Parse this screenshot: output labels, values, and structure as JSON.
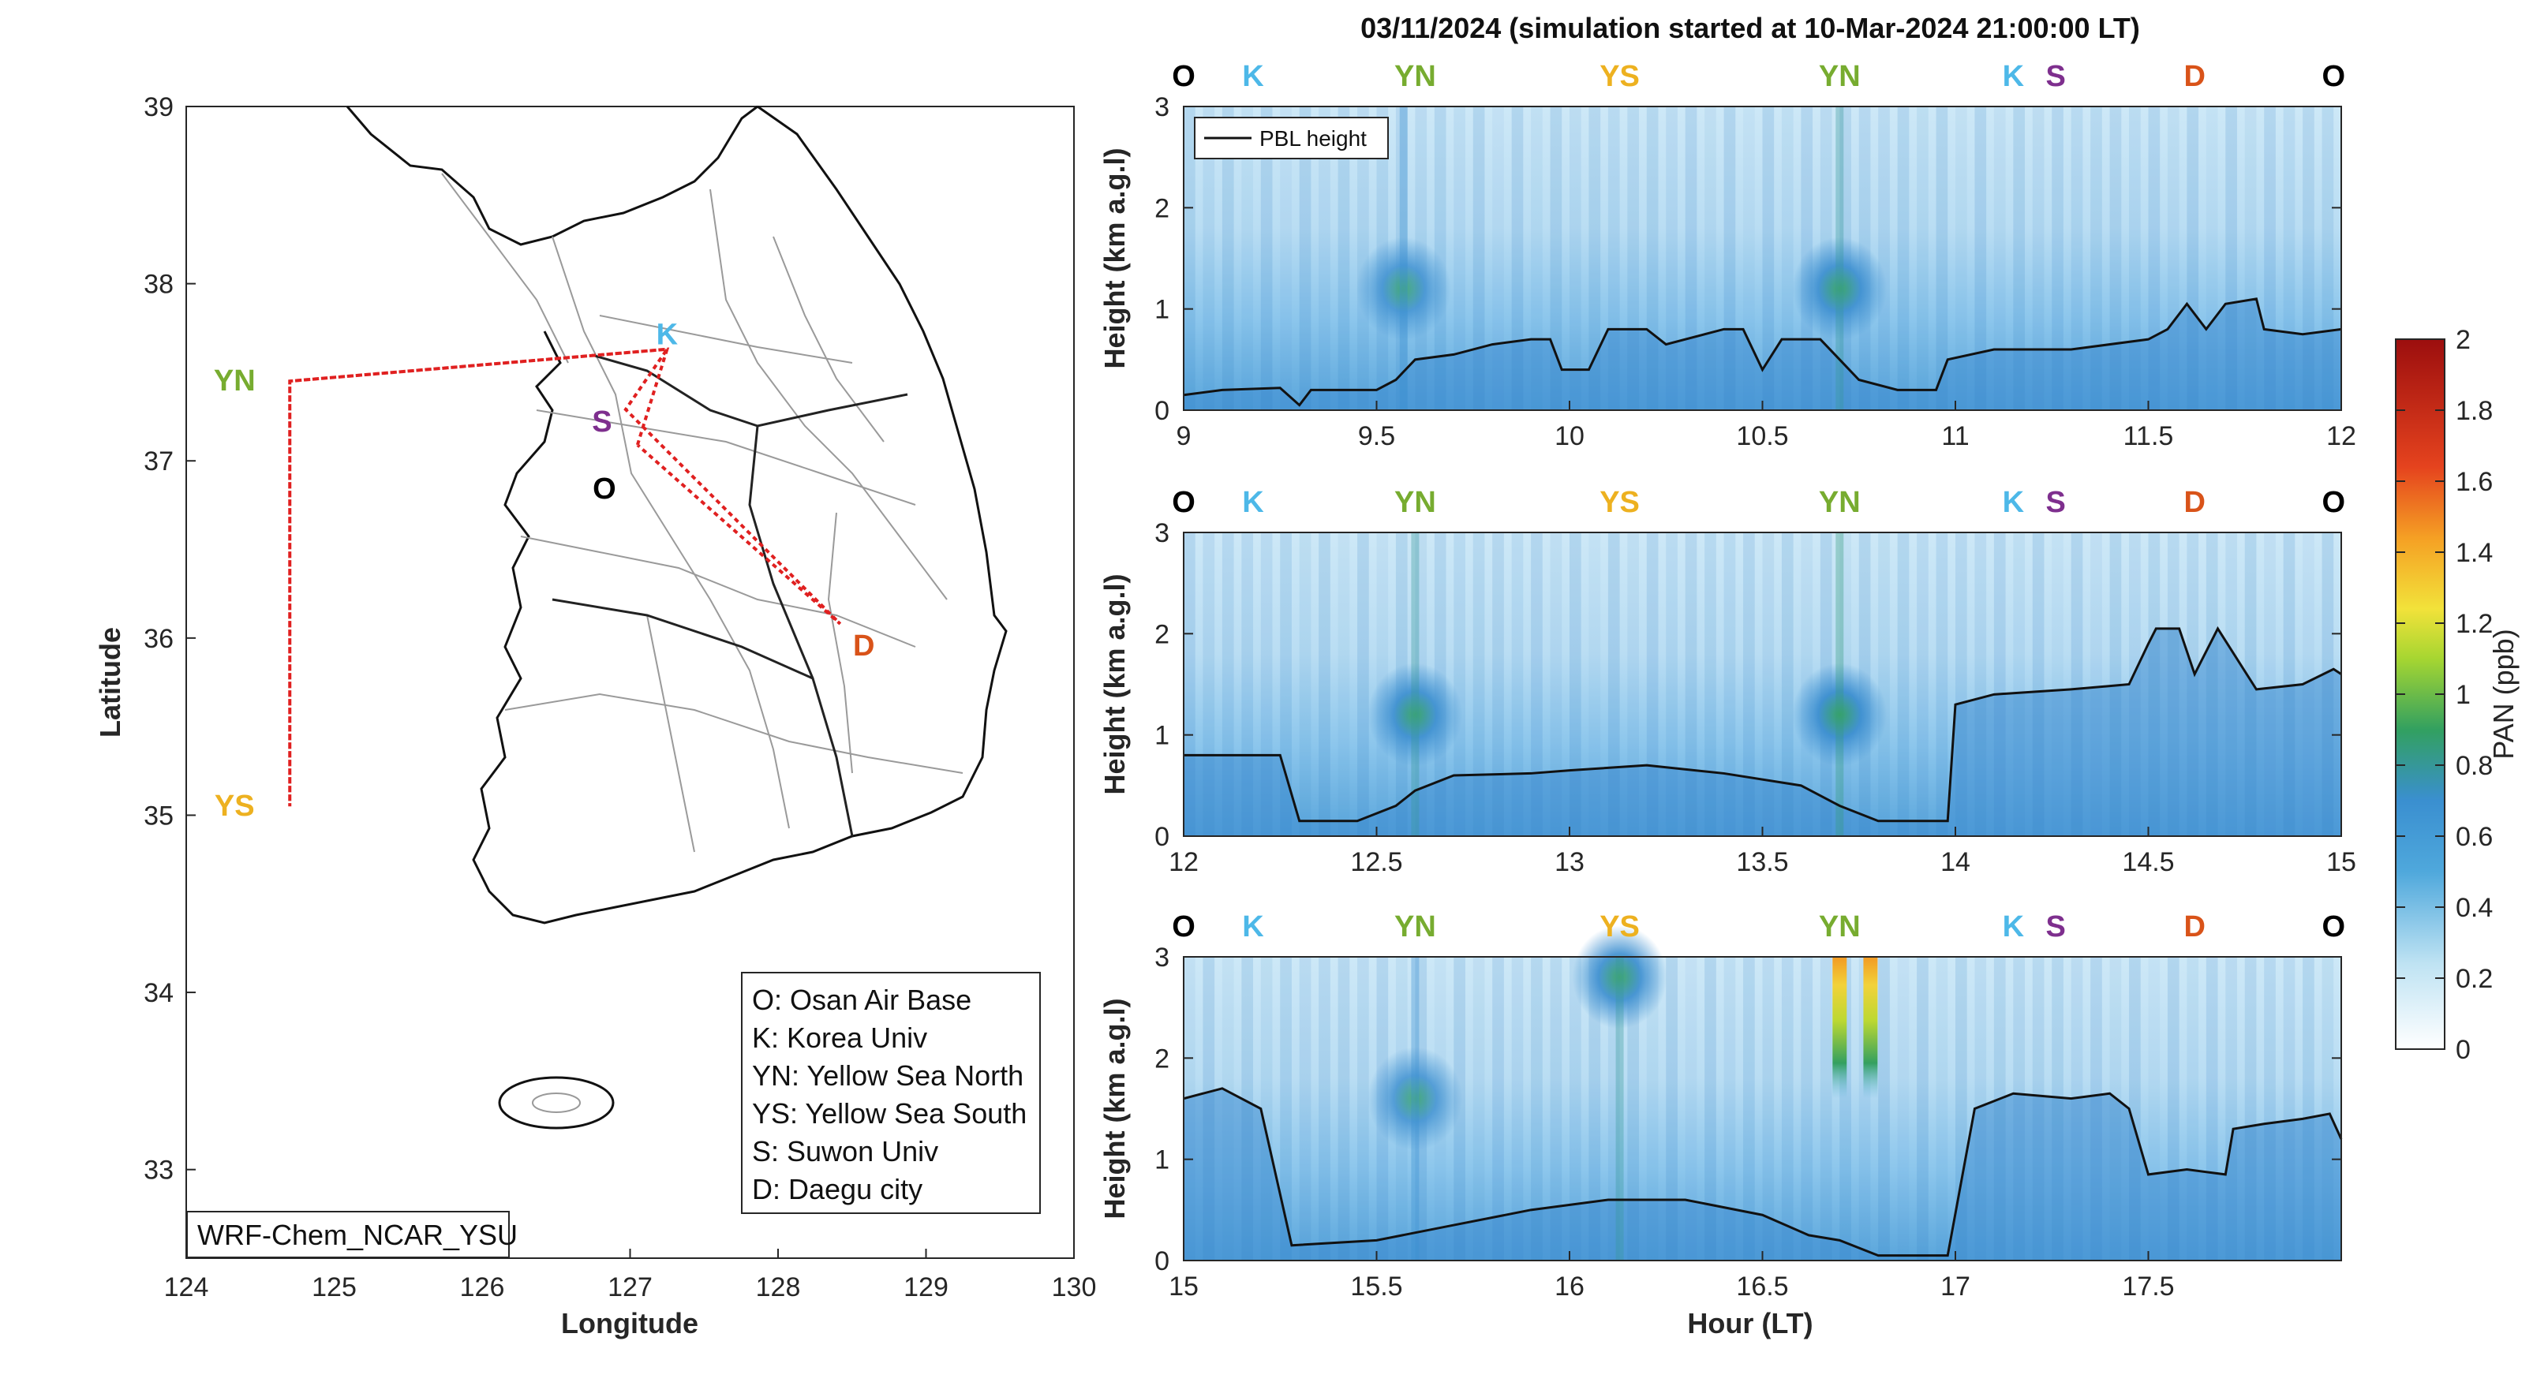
{
  "figure_title": "03/11/2024 (simulation started at 10-Mar-2024 21:00:00 LT)",
  "colors": {
    "O": "#000000",
    "K": "#4DB8E8",
    "YN": "#77AC30",
    "YS": "#EDB120",
    "S": "#7E2F8E",
    "D": "#D95319",
    "track": "#E02020"
  },
  "chart_data": [
    {
      "type": "map",
      "xlabel": "Longitude",
      "ylabel": "Latitude",
      "xlim": [
        124,
        130
      ],
      "ylim": [
        32.5,
        39
      ],
      "xticks": [
        "124",
        "125",
        "126",
        "127",
        "128",
        "129",
        "130"
      ],
      "yticks": [
        "33",
        "34",
        "35",
        "36",
        "37",
        "38",
        "39"
      ],
      "model_label": "WRF-Chem_NCAR_YSU",
      "sites": [
        {
          "code": "K",
          "lon": 127.25,
          "lat": 37.63
        },
        {
          "code": "S",
          "lon": 126.97,
          "lat": 37.29
        },
        {
          "code": "O",
          "lon": 127.05,
          "lat": 37.09
        },
        {
          "code": "YN",
          "lon": 124.7,
          "lat": 37.45
        },
        {
          "code": "YS",
          "lon": 124.7,
          "lat": 35.05
        },
        {
          "code": "D",
          "lon": 128.42,
          "lat": 36.08
        }
      ],
      "flight_track": [
        [
          127.05,
          37.09
        ],
        [
          127.25,
          37.63
        ],
        [
          124.7,
          37.45
        ],
        [
          124.7,
          35.05
        ],
        [
          124.7,
          37.45
        ],
        [
          127.25,
          37.63
        ],
        [
          126.97,
          37.29
        ],
        [
          128.42,
          36.08
        ],
        [
          127.05,
          37.09
        ]
      ],
      "legend": [
        "O: Osan Air Base",
        "K: Korea Univ",
        "YN: Yellow Sea North",
        "YS: Yellow Sea South",
        "S: Suwon Univ",
        "D: Daegu city"
      ]
    },
    {
      "type": "heatmap",
      "panel": 1,
      "xlim": [
        9,
        12
      ],
      "ylim": [
        0,
        3
      ],
      "xticks": [
        "9",
        "9.5",
        "10",
        "10.5",
        "11",
        "11.5",
        "12"
      ],
      "yticks": [
        "0",
        "1",
        "2",
        "3"
      ],
      "ylabel": "Height (km a.g.l)",
      "legend": "PBL height",
      "site_labels": [
        {
          "code": "O",
          "x": 9.0
        },
        {
          "code": "K",
          "x": 9.18
        },
        {
          "code": "YN",
          "x": 9.6
        },
        {
          "code": "YS",
          "x": 10.13
        },
        {
          "code": "YN",
          "x": 10.7
        },
        {
          "code": "K",
          "x": 11.15
        },
        {
          "code": "S",
          "x": 11.26
        },
        {
          "code": "D",
          "x": 11.62
        },
        {
          "code": "O",
          "x": 11.98
        }
      ],
      "pbl": [
        [
          9.0,
          0.15
        ],
        [
          9.1,
          0.2
        ],
        [
          9.25,
          0.22
        ],
        [
          9.3,
          0.05
        ],
        [
          9.33,
          0.2
        ],
        [
          9.5,
          0.2
        ],
        [
          9.55,
          0.3
        ],
        [
          9.6,
          0.5
        ],
        [
          9.7,
          0.55
        ],
        [
          9.8,
          0.65
        ],
        [
          9.9,
          0.7
        ],
        [
          9.95,
          0.7
        ],
        [
          9.98,
          0.4
        ],
        [
          10.05,
          0.4
        ],
        [
          10.1,
          0.8
        ],
        [
          10.2,
          0.8
        ],
        [
          10.25,
          0.65
        ],
        [
          10.4,
          0.8
        ],
        [
          10.45,
          0.8
        ],
        [
          10.5,
          0.4
        ],
        [
          10.55,
          0.7
        ],
        [
          10.65,
          0.7
        ],
        [
          10.7,
          0.5
        ],
        [
          10.75,
          0.3
        ],
        [
          10.85,
          0.2
        ],
        [
          10.95,
          0.2
        ],
        [
          10.98,
          0.5
        ],
        [
          11.1,
          0.6
        ],
        [
          11.3,
          0.6
        ],
        [
          11.5,
          0.7
        ],
        [
          11.55,
          0.8
        ],
        [
          11.6,
          1.05
        ],
        [
          11.65,
          0.8
        ],
        [
          11.7,
          1.05
        ],
        [
          11.78,
          1.1
        ],
        [
          11.8,
          0.8
        ],
        [
          11.9,
          0.75
        ],
        [
          12.0,
          0.8
        ]
      ],
      "pan_plumes": [
        [
          9.57,
          1.2,
          0.6
        ],
        [
          10.7,
          1.2,
          0.7
        ]
      ]
    },
    {
      "type": "heatmap",
      "panel": 2,
      "xlim": [
        12,
        15
      ],
      "ylim": [
        0,
        3
      ],
      "xticks": [
        "12",
        "12.5",
        "13",
        "13.5",
        "14",
        "14.5",
        "15"
      ],
      "yticks": [
        "0",
        "1",
        "2",
        "3"
      ],
      "ylabel": "Height (km a.g.l)",
      "site_labels": [
        {
          "code": "O",
          "x": 12.0
        },
        {
          "code": "K",
          "x": 12.18
        },
        {
          "code": "YN",
          "x": 12.6
        },
        {
          "code": "YS",
          "x": 13.13
        },
        {
          "code": "YN",
          "x": 13.7
        },
        {
          "code": "K",
          "x": 14.15
        },
        {
          "code": "S",
          "x": 14.26
        },
        {
          "code": "D",
          "x": 14.62
        },
        {
          "code": "O",
          "x": 14.98
        }
      ],
      "pbl": [
        [
          12.0,
          0.8
        ],
        [
          12.25,
          0.8
        ],
        [
          12.3,
          0.15
        ],
        [
          12.45,
          0.15
        ],
        [
          12.55,
          0.3
        ],
        [
          12.6,
          0.45
        ],
        [
          12.7,
          0.6
        ],
        [
          12.9,
          0.62
        ],
        [
          13.0,
          0.65
        ],
        [
          13.2,
          0.7
        ],
        [
          13.4,
          0.62
        ],
        [
          13.6,
          0.5
        ],
        [
          13.7,
          0.3
        ],
        [
          13.8,
          0.15
        ],
        [
          13.98,
          0.15
        ],
        [
          14.0,
          1.3
        ],
        [
          14.1,
          1.4
        ],
        [
          14.3,
          1.45
        ],
        [
          14.45,
          1.5
        ],
        [
          14.5,
          1.9
        ],
        [
          14.52,
          2.05
        ],
        [
          14.58,
          2.05
        ],
        [
          14.62,
          1.6
        ],
        [
          14.68,
          2.05
        ],
        [
          14.78,
          1.45
        ],
        [
          14.9,
          1.5
        ],
        [
          14.98,
          1.65
        ],
        [
          15.0,
          1.6
        ]
      ],
      "pan_plumes": [
        [
          12.6,
          1.2,
          0.7
        ],
        [
          13.7,
          1.2,
          0.75
        ]
      ]
    },
    {
      "type": "heatmap",
      "panel": 3,
      "xlim": [
        15,
        18
      ],
      "ylim": [
        0,
        3
      ],
      "xticks": [
        "15",
        "15.5",
        "16",
        "16.5",
        "17",
        "17.5"
      ],
      "yticks": [
        "0",
        "1",
        "2",
        "3"
      ],
      "xlabel": "Hour (LT)",
      "ylabel": "Height (km a.g.l)",
      "site_labels": [
        {
          "code": "O",
          "x": 15.0
        },
        {
          "code": "K",
          "x": 15.18
        },
        {
          "code": "YN",
          "x": 15.6
        },
        {
          "code": "YS",
          "x": 16.13
        },
        {
          "code": "YN",
          "x": 16.7
        },
        {
          "code": "K",
          "x": 17.15
        },
        {
          "code": "S",
          "x": 17.26
        },
        {
          "code": "D",
          "x": 17.62
        },
        {
          "code": "O",
          "x": 17.98
        }
      ],
      "pbl": [
        [
          15.0,
          1.6
        ],
        [
          15.1,
          1.7
        ],
        [
          15.2,
          1.5
        ],
        [
          15.28,
          0.15
        ],
        [
          15.5,
          0.2
        ],
        [
          15.7,
          0.35
        ],
        [
          15.9,
          0.5
        ],
        [
          16.1,
          0.6
        ],
        [
          16.3,
          0.6
        ],
        [
          16.5,
          0.45
        ],
        [
          16.62,
          0.25
        ],
        [
          16.7,
          0.2
        ],
        [
          16.8,
          0.05
        ],
        [
          16.98,
          0.05
        ],
        [
          17.05,
          1.5
        ],
        [
          17.15,
          1.65
        ],
        [
          17.3,
          1.6
        ],
        [
          17.4,
          1.65
        ],
        [
          17.45,
          1.5
        ],
        [
          17.5,
          0.85
        ],
        [
          17.6,
          0.9
        ],
        [
          17.7,
          0.85
        ],
        [
          17.72,
          1.3
        ],
        [
          17.8,
          1.35
        ],
        [
          17.9,
          1.4
        ],
        [
          17.97,
          1.45
        ],
        [
          18.0,
          1.2
        ]
      ],
      "pan_plumes": [
        [
          15.6,
          1.6,
          0.6
        ],
        [
          16.13,
          2.8,
          0.7
        ],
        [
          16.7,
          2.4,
          1.6
        ],
        [
          16.78,
          2.4,
          1.3
        ]
      ]
    },
    {
      "type": "colorbar",
      "label": "PAN (ppb)",
      "range": [
        0,
        2
      ],
      "ticks": [
        "0",
        "0.2",
        "0.4",
        "0.6",
        "0.8",
        "1",
        "1.2",
        "1.4",
        "1.6",
        "1.8",
        "2"
      ]
    }
  ]
}
